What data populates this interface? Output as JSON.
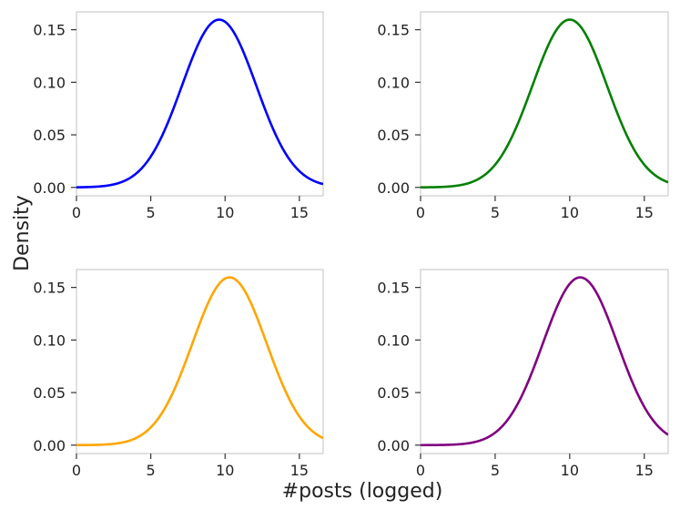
{
  "figure": {
    "xlabel": "#posts (logged)",
    "ylabel": "Density"
  },
  "chart_data": [
    {
      "type": "line",
      "panel": "top-left",
      "color": "#0000ff",
      "curve": "normal-density",
      "mean": 9.6,
      "sd": 2.5,
      "xlim": [
        0,
        16.6
      ],
      "ylim": [
        -0.008,
        0.167
      ],
      "xticks": [
        "0",
        "5",
        "10",
        "15"
      ],
      "yticks": [
        "0.00",
        "0.05",
        "0.10",
        "0.15"
      ],
      "xtick_values": [
        0,
        5,
        10,
        15
      ],
      "ytick_values": [
        0.0,
        0.05,
        0.1,
        0.15
      ]
    },
    {
      "type": "line",
      "panel": "top-right",
      "color": "#008000",
      "curve": "normal-density",
      "mean": 10.0,
      "sd": 2.5,
      "xlim": [
        0,
        16.6
      ],
      "ylim": [
        -0.008,
        0.167
      ],
      "xticks": [
        "0",
        "5",
        "10",
        "15"
      ],
      "yticks": [
        "0.00",
        "0.05",
        "0.10",
        "0.15"
      ],
      "xtick_values": [
        0,
        5,
        10,
        15
      ],
      "ytick_values": [
        0.0,
        0.05,
        0.1,
        0.15
      ]
    },
    {
      "type": "line",
      "panel": "bottom-left",
      "color": "#ffa500",
      "curve": "normal-density",
      "mean": 10.3,
      "sd": 2.5,
      "xlim": [
        0,
        16.6
      ],
      "ylim": [
        -0.008,
        0.167
      ],
      "xticks": [
        "0",
        "5",
        "10",
        "15"
      ],
      "yticks": [
        "0.00",
        "0.05",
        "0.10",
        "0.15"
      ],
      "xtick_values": [
        0,
        5,
        10,
        15
      ],
      "ytick_values": [
        0.0,
        0.05,
        0.1,
        0.15
      ]
    },
    {
      "type": "line",
      "panel": "bottom-right",
      "color": "#800080",
      "curve": "normal-density",
      "mean": 10.7,
      "sd": 2.5,
      "xlim": [
        0,
        16.6
      ],
      "ylim": [
        -0.008,
        0.167
      ],
      "xticks": [
        "0",
        "5",
        "10",
        "15"
      ],
      "yticks": [
        "0.00",
        "0.05",
        "0.10",
        "0.15"
      ],
      "xtick_values": [
        0,
        5,
        10,
        15
      ],
      "ytick_values": [
        0.0,
        0.05,
        0.1,
        0.15
      ]
    }
  ]
}
